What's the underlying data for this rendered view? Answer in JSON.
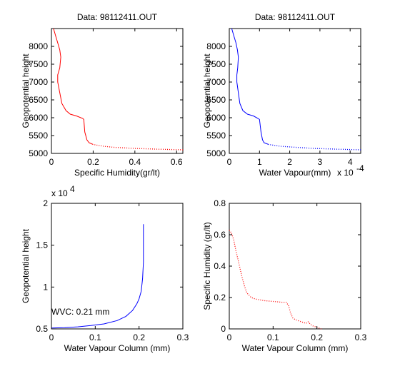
{
  "chart_data": [
    {
      "type": "line",
      "title": "Data: 98112411.OUT",
      "xlabel": "Specific Humidity(gr/lt)",
      "ylabel": "Geopotential height",
      "xlim": [
        0,
        0.63
      ],
      "ylim": [
        5000,
        8500
      ],
      "xticks": [
        "0",
        "0.2",
        "0.4",
        "0.6"
      ],
      "xtick_values": [
        0,
        0.2,
        0.4,
        0.6
      ],
      "yticks": [
        "5000",
        "5500",
        "6000",
        "6500",
        "7000",
        "7500",
        "8000"
      ],
      "ytick_values": [
        5000,
        5500,
        6000,
        6500,
        7000,
        7500,
        8000
      ],
      "color": "#ff0000",
      "style": "solid-then-dotted",
      "x": [
        0.63,
        0.5,
        0.4,
        0.3,
        0.25,
        0.2,
        0.18,
        0.17,
        0.16,
        0.155,
        0.15,
        0.12,
        0.09,
        0.07,
        0.05,
        0.04,
        0.03,
        0.03,
        0.04,
        0.045,
        0.04,
        0.03,
        0.02,
        0.01
      ],
      "y": [
        5100,
        5120,
        5140,
        5170,
        5200,
        5250,
        5300,
        5380,
        5600,
        5950,
        5980,
        6050,
        6100,
        6200,
        6400,
        6700,
        7000,
        7200,
        7400,
        7700,
        7900,
        8100,
        8300,
        8500
      ]
    },
    {
      "type": "line",
      "title": "Data: 98112411.OUT",
      "xlabel": "Water Vapour(mm)",
      "ylabel": "Geopotential height",
      "x_exponent": "x 10",
      "x_exponent_power": "-4",
      "xlim": [
        0,
        4.35
      ],
      "ylim": [
        5000,
        8500
      ],
      "xticks": [
        "0",
        "1",
        "2",
        "3",
        "4"
      ],
      "xtick_values": [
        0,
        1,
        2,
        3,
        4
      ],
      "yticks": [
        "5000",
        "5500",
        "6000",
        "6500",
        "7000",
        "7500",
        "8000"
      ],
      "ytick_values": [
        5000,
        5500,
        6000,
        6500,
        7000,
        7500,
        8000
      ],
      "color": "#0000ff",
      "style": "solid-then-dotted",
      "x": [
        4.35,
        3.5,
        2.8,
        2.2,
        1.7,
        1.3,
        1.15,
        1.1,
        1.05,
        1.0,
        0.95,
        0.8,
        0.6,
        0.45,
        0.35,
        0.3,
        0.25,
        0.25,
        0.28,
        0.3,
        0.27,
        0.22,
        0.15,
        0.08
      ],
      "y": [
        5100,
        5120,
        5140,
        5170,
        5200,
        5250,
        5300,
        5380,
        5600,
        5950,
        5980,
        6050,
        6100,
        6200,
        6400,
        6700,
        7000,
        7200,
        7400,
        7700,
        7900,
        8100,
        8300,
        8500
      ]
    },
    {
      "type": "line",
      "title": "",
      "xlabel": "Water Vapour Column (mm)",
      "ylabel": "Geopotential height",
      "y_exponent": "x 10",
      "y_exponent_power": "4",
      "xlim": [
        0,
        0.3
      ],
      "ylim": [
        0.5,
        2
      ],
      "xticks": [
        "0",
        "0.1",
        "0.2",
        "0.3"
      ],
      "xtick_values": [
        0,
        0.1,
        0.2,
        0.3
      ],
      "yticks": [
        "0.5",
        "1",
        "1.5",
        "2"
      ],
      "ytick_values": [
        0.5,
        1,
        1.5,
        2
      ],
      "annotation": "WVC: 0.21 mm",
      "annotation_color": "#ff0000",
      "color": "#0000ff",
      "style": "solid",
      "x": [
        0,
        0.03,
        0.06,
        0.09,
        0.12,
        0.15,
        0.17,
        0.185,
        0.195,
        0.2,
        0.205,
        0.208,
        0.21,
        0.21
      ],
      "y": [
        0.51,
        0.515,
        0.525,
        0.54,
        0.56,
        0.6,
        0.65,
        0.72,
        0.8,
        0.86,
        0.95,
        1.1,
        1.3,
        1.75
      ]
    },
    {
      "type": "line",
      "title": "",
      "xlabel": "Water Vapour Column (mm)",
      "ylabel": "Specific Humidity (gr/lt)",
      "xlim": [
        0,
        0.3
      ],
      "ylim": [
        0,
        0.8
      ],
      "xticks": [
        "0",
        "0.1",
        "0.2",
        "0.3"
      ],
      "xtick_values": [
        0,
        0.1,
        0.2,
        0.3
      ],
      "yticks": [
        "0",
        "0.2",
        "0.4",
        "0.6",
        "0.8"
      ],
      "ytick_values": [
        0,
        0.2,
        0.4,
        0.6,
        0.8
      ],
      "color": "#ff0000",
      "style": "dotted",
      "x": [
        0,
        0.005,
        0.01,
        0.015,
        0.02,
        0.025,
        0.03,
        0.035,
        0.04,
        0.05,
        0.06,
        0.08,
        0.1,
        0.12,
        0.13,
        0.135,
        0.14,
        0.145,
        0.15,
        0.16,
        0.17,
        0.175,
        0.18,
        0.185,
        0.19,
        0.2,
        0.21
      ],
      "y": [
        0.63,
        0.61,
        0.57,
        0.5,
        0.44,
        0.38,
        0.32,
        0.27,
        0.23,
        0.2,
        0.19,
        0.18,
        0.175,
        0.17,
        0.17,
        0.15,
        0.1,
        0.07,
        0.06,
        0.05,
        0.04,
        0.035,
        0.045,
        0.03,
        0.02,
        0.01,
        0.0
      ]
    }
  ]
}
